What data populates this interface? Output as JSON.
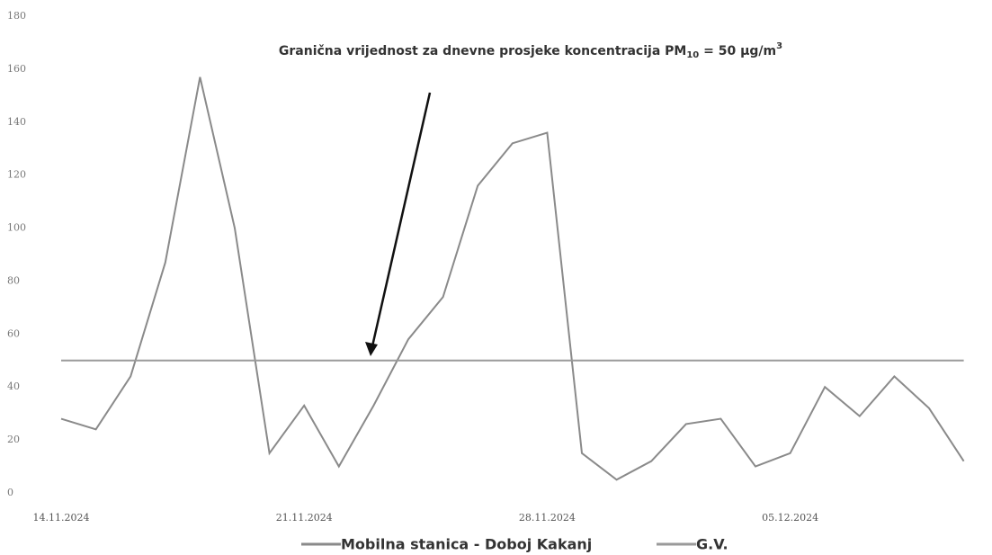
{
  "chart_data": {
    "type": "line",
    "annotation_parts": [
      "Granična vrijednost za dnevne prosjeke koncentracija PM",
      "10",
      " = 50 μg/m",
      "3"
    ],
    "categories": [
      "14.11.2024",
      null,
      null,
      null,
      null,
      null,
      null,
      "21.11.2024",
      null,
      null,
      null,
      null,
      null,
      null,
      "28.11.2024",
      null,
      null,
      null,
      null,
      null,
      null,
      "05.12.2024",
      null,
      null,
      null,
      null,
      null
    ],
    "series": [
      {
        "name": "Mobilna stanica - Doboj Kakanj",
        "color": "#8a8a8a",
        "values": [
          28,
          24,
          44,
          87,
          157,
          100,
          15,
          33,
          10,
          33,
          58,
          74,
          116,
          132,
          136,
          15,
          5,
          12,
          26,
          28,
          10,
          15,
          40,
          29,
          44,
          32,
          12
        ]
      },
      {
        "name": "G.V.",
        "color": "#9a9a9a",
        "values": [
          50,
          50,
          50,
          50,
          50,
          50,
          50,
          50,
          50,
          50,
          50,
          50,
          50,
          50,
          50,
          50,
          50,
          50,
          50,
          50,
          50,
          50,
          50,
          50,
          50,
          50,
          50
        ]
      }
    ],
    "ylim": [
      0,
      180
    ],
    "yticks": [
      0,
      20,
      40,
      60,
      80,
      100,
      120,
      140,
      160,
      180
    ],
    "grid": false
  }
}
